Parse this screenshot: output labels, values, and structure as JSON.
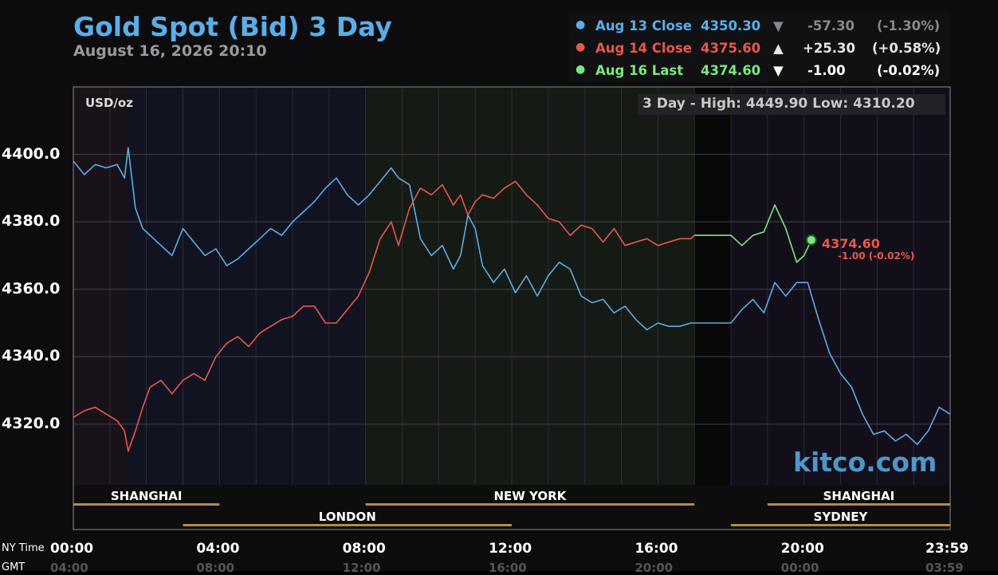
{
  "title": "Gold Spot (Bid) 3 Day",
  "subtitle": "August 16, 2026 20:10",
  "legend": [
    {
      "label": "Aug 13 Close",
      "value": "4350.30",
      "arrow": "▼",
      "change": "-57.30",
      "pct": "(-1.30%)",
      "color": "#5aaee8",
      "change_color": "#888888"
    },
    {
      "label": "Aug 14 Close",
      "value": "4375.60",
      "arrow": "▲",
      "change": "+25.30",
      "pct": "(+0.58%)",
      "color": "#e8584a",
      "change_color": "#e6e6e6"
    },
    {
      "label": "Aug 16 Last",
      "value": "4374.60",
      "arrow": "▼",
      "change": "-1.00",
      "pct": "(-0.02%)",
      "color": "#7ce87c",
      "change_color": "#ffffff"
    }
  ],
  "unit": "USD/oz",
  "high_low": "3 Day - High: 4449.90  Low: 4310.20",
  "watermark": "kitco.com",
  "last_marker": {
    "value": "4374.60",
    "change": "-1.00 (-0.02%)"
  },
  "x_axis_label": "NY Time",
  "gmt_label": "GMT",
  "ny_times": [
    "00:00",
    "04:00",
    "08:00",
    "12:00",
    "16:00",
    "20:00",
    "23:59"
  ],
  "gmt_times": [
    "04:00",
    "08:00",
    "12:00",
    "16:00",
    "20:00",
    "00:00",
    "03:59"
  ],
  "sessions_top": [
    {
      "name": "SHANGHAI",
      "start": 0,
      "end": 4
    },
    {
      "name": "NEW YORK",
      "start": 8,
      "end": 17
    },
    {
      "name": "SHANGHAI",
      "start": 19,
      "end": 24
    }
  ],
  "sessions_bottom": [
    {
      "name": "LONDON",
      "start": 3,
      "end": 12
    },
    {
      "name": "SYDNEY",
      "start": 18,
      "end": 24
    }
  ],
  "chart_data": {
    "type": "line",
    "x_unit": "hours (NY time)",
    "xlim": [
      0,
      24
    ],
    "ylim": [
      4302,
      4420
    ],
    "yticks": [
      4320.0,
      4340.0,
      4360.0,
      4380.0,
      4400.0
    ],
    "series": [
      {
        "name": "Aug 13 Close",
        "color": "#5aaee8",
        "x": [
          0,
          0.3,
          0.6,
          0.9,
          1.2,
          1.4,
          1.5,
          1.7,
          1.9,
          2.1,
          2.4,
          2.7,
          3.0,
          3.3,
          3.6,
          3.9,
          4.2,
          4.5,
          4.8,
          5.1,
          5.4,
          5.7,
          6.0,
          6.3,
          6.6,
          6.9,
          7.2,
          7.5,
          7.8,
          8.1,
          8.4,
          8.7,
          8.9,
          9.2,
          9.5,
          9.8,
          10.1,
          10.4,
          10.6,
          10.8,
          11.0,
          11.2,
          11.5,
          11.8,
          12.1,
          12.4,
          12.7,
          13.0,
          13.3,
          13.6,
          13.9,
          14.2,
          14.5,
          14.8,
          15.1,
          15.4,
          15.7,
          16.0,
          16.3,
          16.6,
          16.9,
          17.0,
          18.0,
          18.3,
          18.6,
          18.9,
          19.2,
          19.5,
          19.8,
          20.1,
          20.4,
          20.7,
          21.0,
          21.3,
          21.6,
          21.9,
          22.2,
          22.5,
          22.8,
          23.1,
          23.4,
          23.7,
          23.99
        ],
        "y": [
          4398,
          4394,
          4397,
          4396,
          4397,
          4393,
          4402,
          4384,
          4378,
          4376,
          4373,
          4370,
          4378,
          4374,
          4370,
          4372,
          4367,
          4369,
          4372,
          4375,
          4378,
          4376,
          4380,
          4383,
          4386,
          4390,
          4393,
          4388,
          4385,
          4388,
          4392,
          4396,
          4393,
          4391,
          4375,
          4370,
          4373,
          4366,
          4370,
          4382,
          4378,
          4367,
          4362,
          4366,
          4359,
          4364,
          4358,
          4364,
          4368,
          4366,
          4358,
          4356,
          4357,
          4353,
          4355,
          4351,
          4348,
          4350,
          4349,
          4349,
          4350,
          4350,
          4350,
          4354,
          4357,
          4353,
          4362,
          4358,
          4362,
          4362,
          4351,
          4341,
          4335,
          4331,
          4323,
          4317,
          4318,
          4315,
          4317,
          4314,
          4318,
          4325,
          4323
        ]
      },
      {
        "name": "Aug 14 Close",
        "color": "#e8584a",
        "x": [
          0,
          0.3,
          0.6,
          0.9,
          1.2,
          1.4,
          1.5,
          1.7,
          1.9,
          2.1,
          2.4,
          2.7,
          3.0,
          3.3,
          3.6,
          3.9,
          4.2,
          4.5,
          4.8,
          5.1,
          5.4,
          5.7,
          6.0,
          6.3,
          6.6,
          6.9,
          7.2,
          7.5,
          7.8,
          8.1,
          8.4,
          8.7,
          8.9,
          9.2,
          9.5,
          9.8,
          10.1,
          10.4,
          10.6,
          10.8,
          11.0,
          11.2,
          11.5,
          11.8,
          12.1,
          12.4,
          12.7,
          13.0,
          13.3,
          13.6,
          13.9,
          14.2,
          14.5,
          14.8,
          15.1,
          15.4,
          15.7,
          16.0,
          16.3,
          16.6,
          16.9,
          17.0
        ],
        "y": [
          4322,
          4324,
          4325,
          4323,
          4321,
          4318,
          4312,
          4318,
          4325,
          4331,
          4333,
          4329,
          4333,
          4335,
          4333,
          4340,
          4344,
          4346,
          4343,
          4347,
          4349,
          4351,
          4352,
          4355,
          4355,
          4350,
          4350,
          4354,
          4358,
          4365,
          4375,
          4380,
          4373,
          4384,
          4390,
          4388,
          4391,
          4385,
          4388,
          4382,
          4386,
          4388,
          4387,
          4390,
          4392,
          4388,
          4385,
          4381,
          4380,
          4376,
          4379,
          4378,
          4374,
          4378,
          4373,
          4374,
          4375,
          4373,
          4374,
          4375,
          4375,
          4376
        ]
      },
      {
        "name": "Aug 16 Last",
        "color": "#7ce87c",
        "x": [
          17.0,
          18.0,
          18.3,
          18.6,
          18.9,
          19.2,
          19.5,
          19.8,
          20.0,
          20.2
        ],
        "y": [
          4376,
          4376,
          4373,
          4376,
          4377,
          4385,
          4378,
          4368,
          4370,
          4374.6
        ]
      }
    ]
  }
}
